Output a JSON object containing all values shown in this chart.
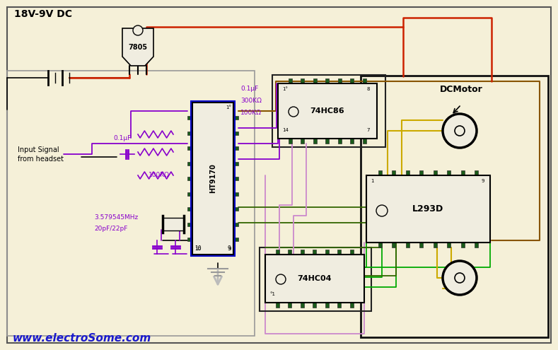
{
  "bg_color": "#f5f0d8",
  "title_text": "18V-9V DC",
  "website_text": "www.electroSome.com",
  "dc_motor_label": "DCMotor",
  "annotations": {
    "cap1": "0.1μF",
    "cap2": "0.1μF",
    "r1": "300KΩ",
    "r2": "100KΩ",
    "r3": "100KΩ",
    "crystal": "3.579545MHz",
    "caps_xtal": "20pF/22pF"
  },
  "chip_bg": "#f0ede0",
  "pin_color": "#1a5c1a",
  "reg_label": "7805",
  "ht_label": "HT9170",
  "hc86_label": "74HC86",
  "hc04_label": "74HC04",
  "l293_label": "L293D"
}
